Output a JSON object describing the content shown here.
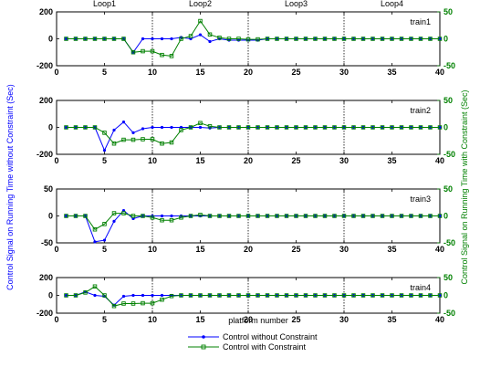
{
  "chart_data": {
    "type": "line",
    "xlabel": "platform number",
    "ylabel_left": "Control Signal on Running Time without Constraint (Sec)",
    "ylabel_right": "Control Signal on Running Time with Constraint (Sec)",
    "xlim": [
      0,
      40
    ],
    "x_ticks": [
      "0",
      "5",
      "10",
      "15",
      "20",
      "25",
      "30",
      "35",
      "40"
    ],
    "loop_labels": [
      "Loop1",
      "Loop2",
      "Loop3",
      "Loop4"
    ],
    "loop_boundaries": [
      10,
      20,
      30
    ],
    "legend": {
      "placement": "bottom-center",
      "entries": [
        "Control without Constraint",
        "Control with Constraint"
      ]
    },
    "colors": {
      "without": "#0000ff",
      "with": "#008000",
      "right_axis": "#008000",
      "left_axis": "#000000"
    },
    "x": [
      1,
      2,
      3,
      4,
      5,
      6,
      7,
      8,
      9,
      10,
      11,
      12,
      13,
      14,
      15,
      16,
      17,
      18,
      19,
      20,
      21,
      22,
      23,
      24,
      25,
      26,
      27,
      28,
      29,
      30,
      31,
      32,
      33,
      34,
      35,
      36,
      37,
      38,
      39,
      40
    ],
    "panels": [
      {
        "label": "train1",
        "left_ylim": [
          -200,
          200
        ],
        "left_ticks": [
          "200",
          "0",
          "-200"
        ],
        "right_ylim": [
          -50,
          50
        ],
        "right_ticks": [
          "50",
          "0",
          "-50"
        ],
        "series": [
          {
            "name": "Control without Constraint",
            "values": [
              0,
              0,
              0,
              0,
              0,
              0,
              0,
              -100,
              0,
              0,
              0,
              0,
              10,
              0,
              30,
              -20,
              0,
              -10,
              -10,
              -10,
              -10,
              0,
              0,
              0,
              0,
              0,
              0,
              0,
              0,
              0,
              0,
              0,
              0,
              0,
              0,
              0,
              0,
              0,
              0,
              0
            ]
          },
          {
            "name": "Control with Constraint",
            "values": [
              0,
              0,
              0,
              0,
              0,
              0,
              0,
              -25,
              -23,
              -23,
              -30,
              -32,
              0,
              5,
              33,
              8,
              2,
              0,
              0,
              -1,
              -1,
              0,
              0,
              0,
              0,
              0,
              0,
              0,
              0,
              0,
              0,
              0,
              0,
              0,
              0,
              0,
              0,
              0,
              0,
              0
            ]
          }
        ]
      },
      {
        "label": "train2",
        "left_ylim": [
          -200,
          200
        ],
        "left_ticks": [
          "200",
          "0",
          "-200"
        ],
        "right_ylim": [
          -50,
          50
        ],
        "right_ticks": [
          "50",
          "0",
          "-50"
        ],
        "series": [
          {
            "name": "Control without Constraint",
            "values": [
              0,
              0,
              0,
              0,
              -170,
              -20,
              40,
              -40,
              -10,
              0,
              0,
              0,
              0,
              0,
              0,
              -5,
              0,
              0,
              0,
              0,
              0,
              0,
              0,
              0,
              0,
              0,
              0,
              0,
              0,
              0,
              0,
              0,
              0,
              0,
              0,
              0,
              0,
              0,
              0,
              0
            ]
          },
          {
            "name": "Control with Constraint",
            "values": [
              0,
              0,
              0,
              0,
              -10,
              -30,
              -23,
              -23,
              -22,
              -22,
              -30,
              -28,
              -5,
              0,
              8,
              2,
              0,
              0,
              0,
              0,
              0,
              0,
              0,
              0,
              0,
              0,
              0,
              0,
              0,
              0,
              0,
              0,
              0,
              0,
              0,
              0,
              0,
              0,
              0,
              0
            ]
          }
        ]
      },
      {
        "label": "train3",
        "left_ylim": [
          -50,
          50
        ],
        "left_ticks": [
          "50",
          "0",
          "-50"
        ],
        "right_ylim": [
          -50,
          50
        ],
        "right_ticks": [
          "50",
          "0",
          "-50"
        ],
        "series": [
          {
            "name": "Control without Constraint",
            "values": [
              0,
              0,
              0,
              -48,
              -45,
              -10,
              10,
              -5,
              0,
              0,
              0,
              0,
              0,
              0,
              0,
              0,
              0,
              0,
              0,
              0,
              0,
              0,
              0,
              0,
              0,
              0,
              0,
              0,
              0,
              0,
              0,
              0,
              0,
              0,
              0,
              0,
              0,
              0,
              0,
              0
            ]
          },
          {
            "name": "Control with Constraint",
            "values": [
              0,
              0,
              0,
              -25,
              -15,
              5,
              5,
              0,
              0,
              -3,
              -8,
              -8,
              -3,
              0,
              2,
              0,
              0,
              0,
              0,
              0,
              0,
              0,
              0,
              0,
              0,
              0,
              0,
              0,
              0,
              0,
              0,
              0,
              0,
              0,
              0,
              0,
              0,
              0,
              0,
              0
            ]
          }
        ]
      },
      {
        "label": "train4",
        "left_ylim": [
          -200,
          200
        ],
        "left_ticks": [
          "200",
          "0",
          "-200"
        ],
        "right_ylim": [
          -50,
          50
        ],
        "right_ticks": [
          "50",
          "0",
          "-50"
        ],
        "series": [
          {
            "name": "Control without Constraint",
            "values": [
              0,
              0,
              40,
              0,
              -10,
              -110,
              -10,
              0,
              0,
              0,
              0,
              0,
              0,
              0,
              0,
              0,
              0,
              0,
              0,
              0,
              0,
              0,
              0,
              0,
              0,
              0,
              0,
              0,
              0,
              0,
              0,
              0,
              0,
              0,
              0,
              0,
              0,
              0,
              0,
              0
            ]
          },
          {
            "name": "Control with Constraint",
            "values": [
              0,
              0,
              8,
              25,
              0,
              -30,
              -23,
              -23,
              -22,
              -22,
              -12,
              -2,
              0,
              0,
              0,
              0,
              0,
              0,
              0,
              0,
              0,
              0,
              0,
              0,
              0,
              0,
              0,
              0,
              0,
              0,
              0,
              0,
              0,
              0,
              0,
              0,
              0,
              0,
              0,
              0
            ]
          }
        ]
      }
    ]
  }
}
